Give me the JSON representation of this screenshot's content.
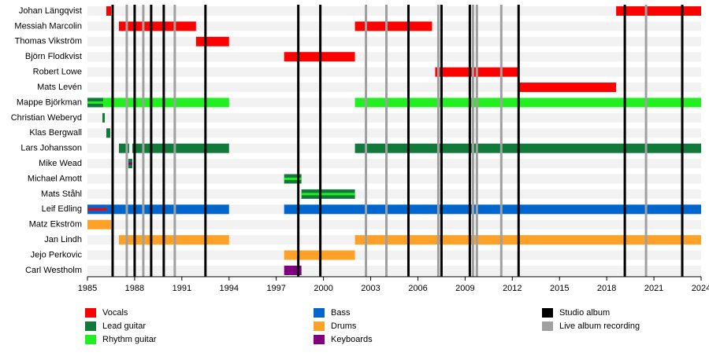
{
  "chart_data": {
    "type": "timeline",
    "xlim": [
      1985,
      2024
    ],
    "xticks": [
      1985,
      1988,
      1991,
      1994,
      1997,
      2000,
      2003,
      2006,
      2009,
      2012,
      2015,
      2018,
      2021,
      2024
    ],
    "roles": [
      {
        "name": "Vocals",
        "color": "#ff0000"
      },
      {
        "name": "Lead guitar",
        "color": "#117a3a"
      },
      {
        "name": "Rhythm guitar",
        "color": "#22ee22"
      },
      {
        "name": "Bass",
        "color": "#0066cc"
      },
      {
        "name": "Drums",
        "color": "#ffa126"
      },
      {
        "name": "Keyboards",
        "color": "#800080"
      }
    ],
    "events": [
      {
        "name": "Studio album",
        "color": "#000000",
        "years": [
          1986.6,
          1988.0,
          1989.05,
          1989.85,
          1992.5,
          1998.4,
          1999.8,
          2005.4,
          2007.5,
          2009.3,
          2012.4,
          2019.15,
          2022.8
        ]
      },
      {
        "name": "Live album recording",
        "color": "#a0a0a0",
        "years": [
          1987.5,
          1988.55,
          1990.55,
          2002.7,
          2004.0,
          2007.3,
          2009.5,
          2009.75,
          2011.3,
          2020.5
        ]
      }
    ],
    "members": [
      {
        "name": "Johan Längqvist",
        "bars": [
          {
            "start": 1986.2,
            "end": 1986.5,
            "roles": [
              "Vocals"
            ]
          },
          {
            "start": 2018.6,
            "end": 2024,
            "roles": [
              "Vocals"
            ]
          }
        ]
      },
      {
        "name": "Messiah Marcolin",
        "bars": [
          {
            "start": 1987.0,
            "end": 1991.9,
            "roles": [
              "Vocals"
            ]
          },
          {
            "start": 2002.0,
            "end": 2006.9,
            "roles": [
              "Vocals"
            ]
          }
        ]
      },
      {
        "name": "Thomas Vikström",
        "bars": [
          {
            "start": 1991.9,
            "end": 1994.0,
            "roles": [
              "Vocals"
            ]
          }
        ]
      },
      {
        "name": "Björn Flodkvist",
        "bars": [
          {
            "start": 1997.5,
            "end": 2002.0,
            "roles": [
              "Vocals"
            ]
          }
        ]
      },
      {
        "name": "Robert Lowe",
        "bars": [
          {
            "start": 2007.1,
            "end": 2012.4,
            "roles": [
              "Vocals"
            ]
          }
        ]
      },
      {
        "name": "Mats Levén",
        "bars": [
          {
            "start": 2012.4,
            "end": 2018.6,
            "roles": [
              "Vocals"
            ]
          }
        ]
      },
      {
        "name": "Mappe Björkman",
        "bars": [
          {
            "start": 1985,
            "end": 1986.0,
            "roles": [
              "Lead guitar",
              "Rhythm guitar"
            ]
          },
          {
            "start": 1986.0,
            "end": 1994.0,
            "roles": [
              "Rhythm guitar"
            ]
          },
          {
            "start": 2002.0,
            "end": 2024,
            "roles": [
              "Rhythm guitar"
            ]
          }
        ]
      },
      {
        "name": "Christian Weberyd",
        "bars": [
          {
            "start": 1985.95,
            "end": 1986.1,
            "roles": [
              "Lead guitar"
            ]
          }
        ]
      },
      {
        "name": "Klas Bergwall",
        "bars": [
          {
            "start": 1986.2,
            "end": 1986.45,
            "roles": [
              "Lead guitar"
            ]
          }
        ]
      },
      {
        "name": "Lars Johansson",
        "bars": [
          {
            "start": 1987.0,
            "end": 1987.65,
            "roles": [
              "Lead guitar"
            ]
          },
          {
            "start": 1987.85,
            "end": 1994.0,
            "roles": [
              "Lead guitar"
            ]
          },
          {
            "start": 2002.0,
            "end": 2024,
            "roles": [
              "Lead guitar"
            ]
          }
        ]
      },
      {
        "name": "Mike Wead",
        "bars": [
          {
            "start": 1987.6,
            "end": 1987.85,
            "roles": [
              "Lead guitar",
              "Keyboards"
            ]
          }
        ]
      },
      {
        "name": "Michael Amott",
        "bars": [
          {
            "start": 1997.5,
            "end": 1998.6,
            "roles": [
              "Lead guitar",
              "Rhythm guitar"
            ]
          }
        ]
      },
      {
        "name": "Mats Ståhl",
        "bars": [
          {
            "start": 1998.6,
            "end": 2002.0,
            "roles": [
              "Lead guitar",
              "Rhythm guitar"
            ]
          }
        ]
      },
      {
        "name": "Leif Edling",
        "bars": [
          {
            "start": 1985,
            "end": 1986.25,
            "roles": [
              "Bass",
              "Vocals"
            ]
          },
          {
            "start": 1986.25,
            "end": 1994.0,
            "roles": [
              "Bass"
            ]
          },
          {
            "start": 1997.5,
            "end": 2024,
            "roles": [
              "Bass"
            ]
          }
        ]
      },
      {
        "name": "Matz Ekström",
        "bars": [
          {
            "start": 1985,
            "end": 1986.5,
            "roles": [
              "Drums"
            ]
          }
        ]
      },
      {
        "name": "Jan Lindh",
        "bars": [
          {
            "start": 1987.0,
            "end": 1994.0,
            "roles": [
              "Drums"
            ]
          },
          {
            "start": 2002.0,
            "end": 2024,
            "roles": [
              "Drums"
            ]
          }
        ]
      },
      {
        "name": "Jejo Perkovic",
        "bars": [
          {
            "start": 1997.5,
            "end": 2002.0,
            "roles": [
              "Drums"
            ]
          }
        ]
      },
      {
        "name": "Carl Westholm",
        "bars": [
          {
            "start": 1997.5,
            "end": 1998.6,
            "roles": [
              "Keyboards"
            ]
          }
        ]
      }
    ]
  }
}
